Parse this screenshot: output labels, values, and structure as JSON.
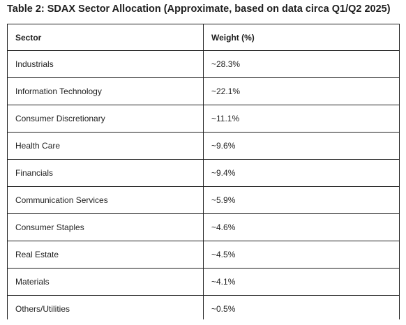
{
  "title": "Table 2: SDAX Sector Allocation (Approximate, based on data circa Q1/Q2 2025)",
  "table": {
    "headers": [
      "Sector",
      "Weight (%)"
    ],
    "rows": [
      {
        "sector": "Industrials",
        "weight": "~28.3%"
      },
      {
        "sector": "Information Technology",
        "weight": "~22.1%"
      },
      {
        "sector": "Consumer Discretionary",
        "weight": "~11.1%"
      },
      {
        "sector": "Health Care",
        "weight": "~9.6%"
      },
      {
        "sector": "Financials",
        "weight": "~9.4%"
      },
      {
        "sector": "Communication Services",
        "weight": "~5.9%"
      },
      {
        "sector": "Consumer Staples",
        "weight": "~4.6%"
      },
      {
        "sector": "Real Estate",
        "weight": "~4.5%"
      },
      {
        "sector": "Materials",
        "weight": "~4.1%"
      },
      {
        "sector": "Others/Utilities",
        "weight": "~0.5%"
      }
    ]
  }
}
